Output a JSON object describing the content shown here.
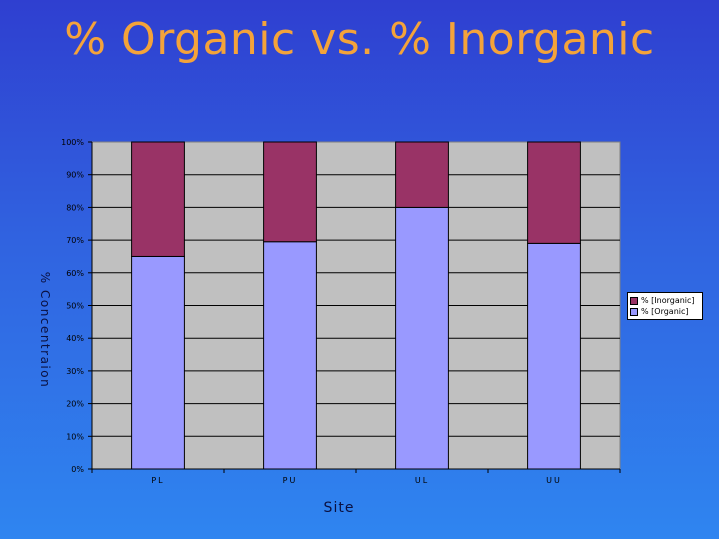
{
  "slide": {
    "title": "% Organic vs. % Inorganic"
  },
  "chart_data": {
    "type": "bar",
    "stacked": true,
    "categories": [
      "PL",
      "PU",
      "UL",
      "UU"
    ],
    "series": [
      {
        "name": "% [Organic]",
        "values": [
          65,
          69.5,
          80,
          69
        ],
        "color": "#9999ff"
      },
      {
        "name": "% [Inorganic]",
        "values": [
          35,
          30.5,
          20,
          31
        ],
        "color": "#993366"
      }
    ],
    "xlabel": "Site",
    "ylabel": "% Concentraion",
    "ylim": [
      0,
      100
    ],
    "yticks": [
      "0%",
      "10%",
      "20%",
      "30%",
      "40%",
      "50%",
      "60%",
      "70%",
      "80%",
      "90%",
      "100%"
    ],
    "grid": true,
    "plot_background": "#c0c0c0",
    "legend_position": "right",
    "legend_order": [
      "% [Inorganic]",
      "% [Organic]"
    ]
  }
}
